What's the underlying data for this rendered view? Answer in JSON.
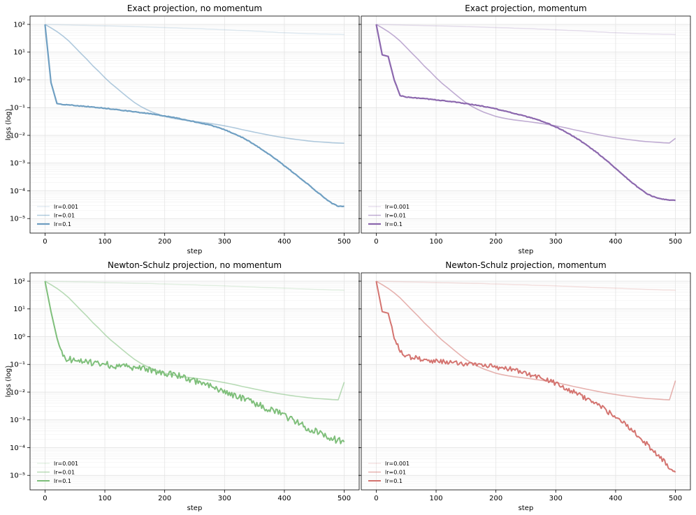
{
  "chart_data": [
    {
      "type": "line",
      "title": "Exact projection, no momentum",
      "xlabel": "step",
      "ylabel": "loss (log)",
      "yscale": "log",
      "xlim": [
        -25,
        525
      ],
      "ylim": [
        3e-06,
        200
      ],
      "xticks": [
        0,
        100,
        200,
        300,
        400,
        500
      ],
      "yticks": [
        1e-05,
        0.0001,
        0.001,
        0.01,
        0.1,
        1,
        10,
        100
      ],
      "x_step": 10,
      "color": "#6f9fc2",
      "legend_position": "lower-left",
      "series": [
        {
          "name": "lr=0.001",
          "alpha": 0.2,
          "width": 1.5,
          "noise": 0,
          "values": [
            100,
            99,
            98,
            97,
            96,
            94,
            93,
            92,
            91,
            90,
            89,
            88,
            87,
            86,
            85,
            83,
            82,
            81,
            80,
            78,
            77,
            76,
            75,
            73,
            72,
            71,
            70,
            68,
            67,
            65,
            64,
            63,
            61,
            60,
            59,
            57,
            56,
            54,
            53,
            51,
            50,
            49,
            48,
            47,
            46,
            46,
            45,
            45,
            44,
            44,
            43
          ]
        },
        {
          "name": "lr=0.01",
          "alpha": 0.55,
          "width": 1.6,
          "noise": 0,
          "values": [
            100,
            75,
            55,
            38,
            25,
            15,
            9,
            5.5,
            3.2,
            2.0,
            1.2,
            0.75,
            0.5,
            0.33,
            0.22,
            0.15,
            0.11,
            0.085,
            0.068,
            0.057,
            0.048,
            0.043,
            0.039,
            0.036,
            0.034,
            0.032,
            0.03,
            0.028,
            0.026,
            0.024,
            0.022,
            0.02,
            0.018,
            0.016,
            0.0145,
            0.013,
            0.0118,
            0.0107,
            0.0097,
            0.0089,
            0.0082,
            0.0076,
            0.0071,
            0.0067,
            0.0063,
            0.006,
            0.0058,
            0.0056,
            0.0054,
            0.0053,
            0.0052
          ]
        },
        {
          "name": "lr=0.1",
          "alpha": 1.0,
          "width": 2.2,
          "noise": 0.012,
          "values": [
            100,
            0.8,
            0.14,
            0.13,
            0.125,
            0.12,
            0.115,
            0.11,
            0.105,
            0.1,
            0.095,
            0.09,
            0.085,
            0.08,
            0.075,
            0.07,
            0.066,
            0.062,
            0.058,
            0.054,
            0.05,
            0.046,
            0.042,
            0.038,
            0.034,
            0.031,
            0.028,
            0.025,
            0.022,
            0.019,
            0.016,
            0.013,
            0.0105,
            0.0083,
            0.0063,
            0.0047,
            0.0034,
            0.0024,
            0.0017,
            0.0012,
            0.0008,
            0.00055,
            0.00037,
            0.00025,
            0.00017,
            0.00011,
            7.5e-05,
            5e-05,
            3.5e-05,
            2.8e-05,
            2.8e-05
          ]
        }
      ]
    },
    {
      "type": "line",
      "title": "Exact projection, momentum",
      "xlabel": "step",
      "ylabel": "",
      "yscale": "log",
      "xlim": [
        -25,
        525
      ],
      "ylim": [
        3e-06,
        200
      ],
      "xticks": [
        0,
        100,
        200,
        300,
        400,
        500
      ],
      "yticks": [
        1e-05,
        0.0001,
        0.001,
        0.01,
        0.1,
        1,
        10,
        100
      ],
      "x_step": 10,
      "color": "#8c68ae",
      "legend_position": "lower-left",
      "series": [
        {
          "name": "lr=0.001",
          "alpha": 0.2,
          "width": 1.5,
          "noise": 0,
          "values": [
            100,
            99,
            98,
            97,
            96,
            94,
            93,
            92,
            91,
            90,
            89,
            88,
            87,
            86,
            85,
            83,
            82,
            81,
            80,
            78,
            77,
            76,
            75,
            73,
            72,
            71,
            70,
            68,
            67,
            65,
            64,
            63,
            61,
            60,
            59,
            57,
            56,
            54,
            53,
            51,
            50,
            49,
            48,
            47,
            46,
            46,
            45,
            45,
            44,
            44,
            43
          ]
        },
        {
          "name": "lr=0.01",
          "alpha": 0.55,
          "width": 1.6,
          "noise": 0,
          "values": [
            100,
            75,
            55,
            38,
            25,
            15,
            9,
            5.5,
            3.2,
            2.0,
            1.2,
            0.75,
            0.5,
            0.33,
            0.22,
            0.15,
            0.11,
            0.085,
            0.068,
            0.057,
            0.048,
            0.043,
            0.039,
            0.036,
            0.034,
            0.032,
            0.03,
            0.028,
            0.026,
            0.024,
            0.022,
            0.02,
            0.018,
            0.016,
            0.0145,
            0.013,
            0.0118,
            0.0107,
            0.0097,
            0.0089,
            0.0082,
            0.0076,
            0.0071,
            0.0067,
            0.0063,
            0.006,
            0.0058,
            0.0056,
            0.0054,
            0.0053,
            0.0078
          ]
        },
        {
          "name": "lr=0.1",
          "alpha": 1.0,
          "width": 2.2,
          "noise": 0.012,
          "values": [
            100,
            8,
            7,
            1.0,
            0.27,
            0.24,
            0.23,
            0.22,
            0.21,
            0.2,
            0.19,
            0.18,
            0.17,
            0.16,
            0.15,
            0.14,
            0.13,
            0.12,
            0.11,
            0.1,
            0.09,
            0.08,
            0.07,
            0.062,
            0.055,
            0.048,
            0.042,
            0.036,
            0.03,
            0.025,
            0.02,
            0.016,
            0.012,
            0.009,
            0.0066,
            0.0047,
            0.0033,
            0.0023,
            0.0015,
            0.001,
            0.00065,
            0.00042,
            0.00027,
            0.00018,
            0.00012,
            8.5e-05,
            6.5e-05,
            5.5e-05,
            5e-05,
            4.6e-05,
            4.5e-05
          ]
        }
      ]
    },
    {
      "type": "line",
      "title": "Newton-Schulz projection, no momentum",
      "xlabel": "step",
      "ylabel": "loss (log)",
      "yscale": "log",
      "xlim": [
        -25,
        525
      ],
      "ylim": [
        3e-06,
        200
      ],
      "xticks": [
        0,
        100,
        200,
        300,
        400,
        500
      ],
      "yticks": [
        1e-05,
        0.0001,
        0.001,
        0.01,
        0.1,
        1,
        10,
        100
      ],
      "x_step": 10,
      "color": "#7fbf7b",
      "legend_position": "lower-left",
      "series": [
        {
          "name": "lr=0.001",
          "alpha": 0.2,
          "width": 1.5,
          "noise": 0,
          "values": [
            100,
            99,
            98,
            97,
            96,
            95,
            94,
            93,
            92,
            91,
            90,
            89,
            88,
            87,
            86,
            85,
            84,
            83,
            82,
            80,
            79,
            78,
            77,
            76,
            75,
            74,
            72,
            71,
            70,
            69,
            68,
            66,
            65,
            64,
            63,
            62,
            60,
            59,
            58,
            57,
            56,
            55,
            54,
            53,
            52,
            51,
            50,
            49,
            48,
            48,
            47
          ]
        },
        {
          "name": "lr=0.01",
          "alpha": 0.55,
          "width": 1.6,
          "noise": 0,
          "values": [
            100,
            75,
            55,
            38,
            25,
            15,
            9,
            5.5,
            3.2,
            2.0,
            1.2,
            0.75,
            0.5,
            0.33,
            0.22,
            0.15,
            0.11,
            0.085,
            0.068,
            0.057,
            0.048,
            0.043,
            0.039,
            0.036,
            0.034,
            0.032,
            0.03,
            0.028,
            0.026,
            0.024,
            0.022,
            0.02,
            0.018,
            0.016,
            0.0145,
            0.013,
            0.0118,
            0.0107,
            0.0097,
            0.0089,
            0.0082,
            0.0076,
            0.0071,
            0.0067,
            0.0063,
            0.006,
            0.0058,
            0.0056,
            0.0054,
            0.0053,
            0.023
          ]
        },
        {
          "name": "lr=0.1",
          "alpha": 1.0,
          "width": 2.0,
          "noise": 0.12,
          "values": [
            100,
            8,
            0.9,
            0.17,
            0.15,
            0.14,
            0.13,
            0.12,
            0.115,
            0.11,
            0.1,
            0.095,
            0.09,
            0.085,
            0.08,
            0.075,
            0.07,
            0.065,
            0.06,
            0.055,
            0.05,
            0.045,
            0.04,
            0.035,
            0.03,
            0.025,
            0.021,
            0.018,
            0.015,
            0.012,
            0.01,
            0.0085,
            0.007,
            0.0058,
            0.0048,
            0.004,
            0.0033,
            0.0027,
            0.0022,
            0.0018,
            0.0014,
            0.0011,
            0.00085,
            0.00065,
            0.0005,
            0.0004,
            0.00032,
            0.00026,
            0.00021,
            0.00018,
            0.00016
          ]
        }
      ]
    },
    {
      "type": "line",
      "title": "Newton-Schulz projection, momentum",
      "xlabel": "step",
      "ylabel": "",
      "yscale": "log",
      "xlim": [
        -25,
        525
      ],
      "ylim": [
        3e-06,
        200
      ],
      "xticks": [
        0,
        100,
        200,
        300,
        400,
        500
      ],
      "yticks": [
        1e-05,
        0.0001,
        0.001,
        0.01,
        0.1,
        1,
        10,
        100
      ],
      "x_step": 10,
      "color": "#d47470",
      "legend_position": "lower-left",
      "series": [
        {
          "name": "lr=0.001",
          "alpha": 0.2,
          "width": 1.5,
          "noise": 0,
          "values": [
            100,
            99,
            98,
            97,
            96,
            95,
            94,
            93,
            92,
            91,
            90,
            89,
            88,
            87,
            86,
            85,
            84,
            83,
            82,
            80,
            79,
            78,
            77,
            76,
            75,
            74,
            72,
            71,
            70,
            69,
            68,
            66,
            65,
            64,
            63,
            62,
            60,
            59,
            58,
            57,
            56,
            55,
            54,
            53,
            52,
            51,
            50,
            49,
            48,
            48,
            47
          ]
        },
        {
          "name": "lr=0.01",
          "alpha": 0.55,
          "width": 1.6,
          "noise": 0,
          "values": [
            100,
            75,
            55,
            38,
            25,
            15,
            9,
            5.5,
            3.2,
            2.0,
            1.2,
            0.75,
            0.5,
            0.33,
            0.22,
            0.15,
            0.11,
            0.085,
            0.068,
            0.057,
            0.048,
            0.043,
            0.039,
            0.036,
            0.034,
            0.032,
            0.03,
            0.028,
            0.026,
            0.024,
            0.022,
            0.02,
            0.018,
            0.016,
            0.0145,
            0.013,
            0.0118,
            0.0107,
            0.0097,
            0.0089,
            0.0082,
            0.0076,
            0.0071,
            0.0067,
            0.0063,
            0.006,
            0.0058,
            0.0056,
            0.0054,
            0.0053,
            0.026
          ]
        },
        {
          "name": "lr=0.1",
          "alpha": 1.0,
          "width": 2.0,
          "noise": 0.09,
          "values": [
            100,
            8,
            7,
            1.0,
            0.3,
            0.2,
            0.18,
            0.16,
            0.15,
            0.14,
            0.13,
            0.125,
            0.12,
            0.115,
            0.11,
            0.105,
            0.1,
            0.095,
            0.09,
            0.085,
            0.08,
            0.075,
            0.07,
            0.063,
            0.055,
            0.048,
            0.042,
            0.036,
            0.03,
            0.025,
            0.021,
            0.017,
            0.013,
            0.01,
            0.0078,
            0.006,
            0.0045,
            0.0034,
            0.0025,
            0.0018,
            0.0013,
            0.0009,
            0.0006,
            0.0004,
            0.00025,
            0.00015,
            9e-05,
            5.5e-05,
            3.5e-05,
            2e-05,
            1.3e-05
          ]
        }
      ]
    }
  ]
}
